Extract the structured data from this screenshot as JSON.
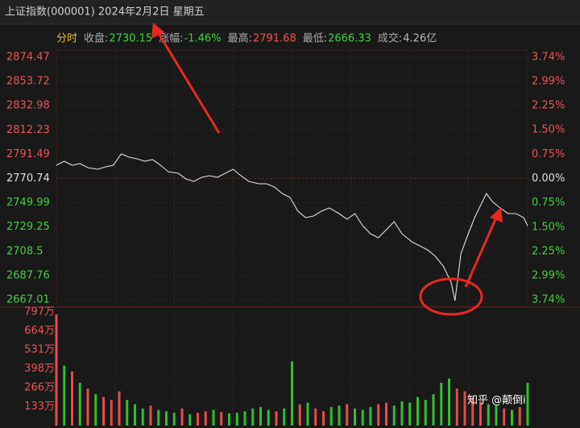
{
  "header": {
    "title": "上证指数(000001) 2024年2月2日 星期五"
  },
  "info": {
    "mode": "分时",
    "items": [
      {
        "label": "收盘:",
        "value": 2730.15,
        "color": "#3fcf3f"
      },
      {
        "label": "涨幅:",
        "value": "-1.46%",
        "color": "#3fcf3f"
      },
      {
        "label": "最高:",
        "value": 2791.68,
        "color": "#f05050"
      },
      {
        "label": "最低:",
        "value": 2666.33,
        "color": "#3fcf3f"
      },
      {
        "label": "成交:",
        "value": "4.26亿",
        "color": "#bbbbbb"
      }
    ]
  },
  "watermark": "知乎 @颠倒i",
  "chart_data": [
    {
      "type": "line",
      "x": [
        0,
        4,
        8,
        12,
        16,
        21,
        25,
        29,
        33,
        37,
        41,
        45,
        49,
        53,
        57,
        62,
        66,
        70,
        74,
        78,
        82,
        86,
        90,
        94,
        98,
        103,
        107,
        111,
        115,
        119,
        123,
        127,
        131,
        135,
        139,
        144,
        148,
        152,
        156,
        160,
        164,
        168,
        172,
        176,
        181,
        185,
        189,
        193,
        197,
        201,
        203,
        206,
        209,
        213,
        217,
        219,
        222,
        226,
        230,
        234,
        238,
        240
      ],
      "series": [
        {
          "color": "#dddddd",
          "values": [
            2782.11,
            2785.56,
            2782.11,
            2783.49,
            2780.05,
            2778.67,
            2780.74,
            2782.11,
            2791.7,
            2789.01,
            2787.63,
            2785.56,
            2786.94,
            2782.11,
            2776.6,
            2775.22,
            2770.4,
            2768.33,
            2771.78,
            2773.15,
            2771.78,
            2775.22,
            2778.67,
            2773.15,
            2768.33,
            2766.26,
            2766.26,
            2763.5,
            2757.99,
            2754.54,
            2742.83,
            2737.31,
            2738.69,
            2742.83,
            2745.58,
            2740.76,
            2735.94,
            2740.76,
            2730.42,
            2723.53,
            2720.08,
            2726.97,
            2733.87,
            2723.53,
            2716.64,
            2713.19,
            2709.74,
            2704.23,
            2695.96,
            2682.18,
            2666.33,
            2706.3,
            2720.08,
            2737.31,
            2751.1,
            2757.99,
            2751.1,
            2745.58,
            2740.76,
            2740.76,
            2737.31,
            2730.15
          ]
        }
      ],
      "xlim": [
        0,
        240
      ],
      "ylim": [
        2667.01,
        2874.47
      ],
      "yticks": [
        2874.47,
        2853.72,
        2832.98,
        2812.23,
        2791.49,
        2770.74,
        2749.99,
        2729.25,
        2708.5,
        2687.76,
        2667.01
      ],
      "y2lim": [
        -3.74,
        3.74
      ],
      "y2ticks": [
        {
          "value": 3.74,
          "label": "3.74%"
        },
        {
          "value": 2.99,
          "label": "2.99%"
        },
        {
          "value": 2.25,
          "label": "2.25%"
        },
        {
          "value": 1.5,
          "label": "1.50%"
        },
        {
          "value": 0.75,
          "label": "0.75%"
        },
        {
          "value": 0,
          "label": "0.00%"
        },
        {
          "value": -0.75,
          "label": "0.75%"
        },
        {
          "value": -1.5,
          "label": "1.50%"
        },
        {
          "value": -2.25,
          "label": "2.25%"
        },
        {
          "value": -2.99,
          "label": "2.99%"
        },
        {
          "value": -3.74,
          "label": "3.74%"
        }
      ],
      "grid": true
    },
    {
      "type": "bar",
      "x": [
        0,
        4,
        8,
        12,
        16,
        20,
        24,
        28,
        32,
        36,
        40,
        44,
        48,
        52,
        56,
        60,
        64,
        68,
        72,
        76,
        80,
        84,
        88,
        92,
        96,
        100,
        104,
        108,
        112,
        116,
        120,
        124,
        128,
        132,
        136,
        140,
        144,
        148,
        152,
        156,
        160,
        164,
        168,
        172,
        176,
        180,
        184,
        188,
        192,
        196,
        200,
        204,
        208,
        212,
        216,
        220,
        224,
        228,
        232,
        236,
        240
      ],
      "values": [
        780,
        420,
        380,
        300,
        260,
        220,
        200,
        180,
        240,
        180,
        150,
        120,
        140,
        110,
        100,
        90,
        120,
        80,
        90,
        100,
        110,
        95,
        85,
        90,
        100,
        120,
        130,
        110,
        100,
        120,
        450,
        150,
        160,
        120,
        100,
        130,
        140,
        150,
        120,
        110,
        130,
        150,
        160,
        140,
        170,
        160,
        200,
        180,
        220,
        300,
        330,
        260,
        240,
        200,
        170,
        150,
        140,
        120,
        110,
        130,
        300
      ],
      "colors": [
        "#e84a4a",
        "#2fbf2f",
        "#e84a4a",
        "#2fbf2f",
        "#e84a4a",
        "#2fbf2f",
        "#e84a4a",
        "#e84a4a",
        "#e84a4a",
        "#2fbf2f",
        "#2fbf2f",
        "#2fbf2f",
        "#e84a4a",
        "#2fbf2f",
        "#2fbf2f",
        "#2fbf2f",
        "#e84a4a",
        "#2fbf2f",
        "#e84a4a",
        "#e84a4a",
        "#2fbf2f",
        "#e84a4a",
        "#2fbf2f",
        "#2fbf2f",
        "#2fbf2f",
        "#2fbf2f",
        "#2fbf2f",
        "#2fbf2f",
        "#e84a4a",
        "#2fbf2f",
        "#2fbf2f",
        "#e84a4a",
        "#2fbf2f",
        "#e84a4a",
        "#e84a4a",
        "#2fbf2f",
        "#2fbf2f",
        "#e84a4a",
        "#2fbf2f",
        "#2fbf2f",
        "#2fbf2f",
        "#e84a4a",
        "#e84a4a",
        "#2fbf2f",
        "#2fbf2f",
        "#2fbf2f",
        "#2fbf2f",
        "#2fbf2f",
        "#2fbf2f",
        "#2fbf2f",
        "#2fbf2f",
        "#e84a4a",
        "#e84a4a",
        "#e84a4a",
        "#e84a4a",
        "#2fbf2f",
        "#2fbf2f",
        "#e84a4a",
        "#2fbf2f",
        "#e84a4a",
        "#2fbf2f"
      ],
      "xlim": [
        0,
        240
      ],
      "ylim": [
        0,
        797
      ],
      "yticks": [
        {
          "value": 797,
          "label": "797万"
        },
        {
          "value": 664,
          "label": "664万"
        },
        {
          "value": 531,
          "label": "531万"
        },
        {
          "value": 398,
          "label": "398万"
        },
        {
          "value": 266,
          "label": "266万"
        },
        {
          "value": 133,
          "label": "133万"
        }
      ]
    }
  ]
}
